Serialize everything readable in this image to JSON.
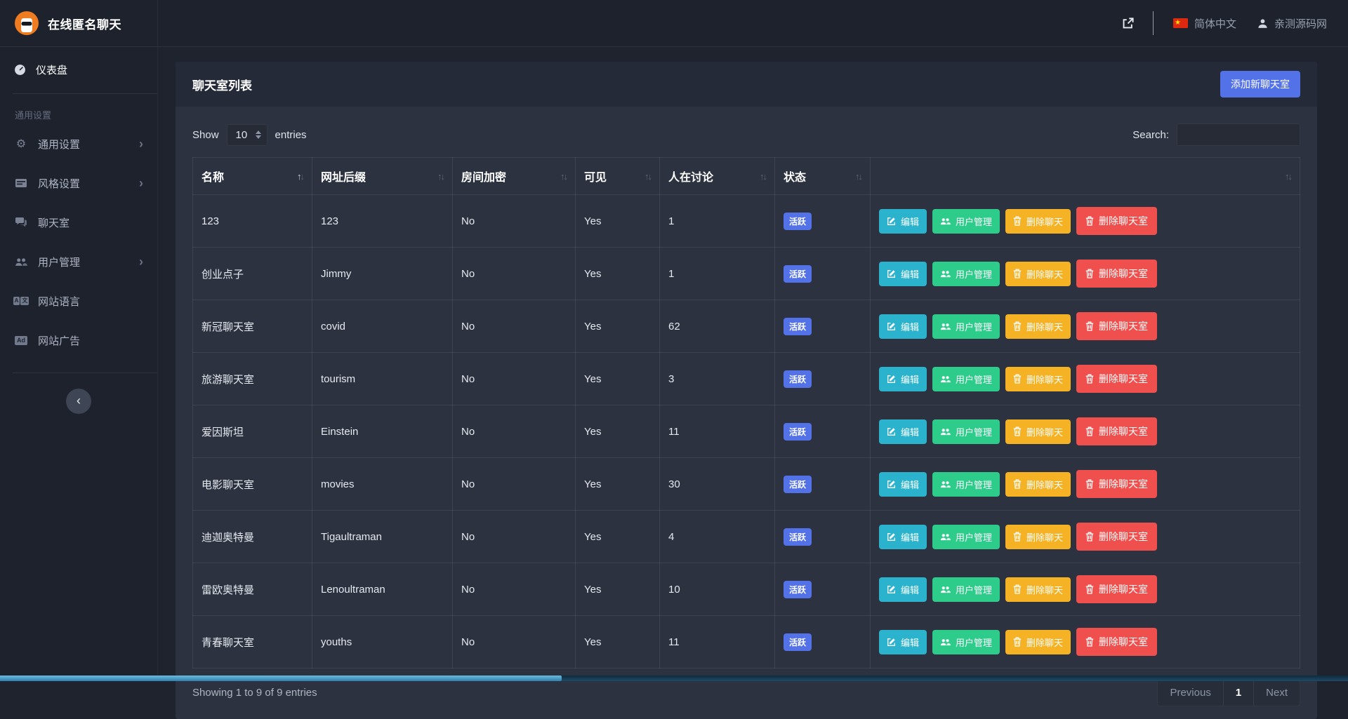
{
  "topbar": {
    "brand": "在线匿名聊天",
    "language": "简体中文",
    "username": "亲测源码网"
  },
  "sidebar": {
    "dashboard": "仪表盘",
    "section_label": "通用设置",
    "items": [
      {
        "label": "通用设置",
        "icon": "gear-icon",
        "expandable": true
      },
      {
        "label": "风格设置",
        "icon": "style-icon",
        "expandable": true
      },
      {
        "label": "聊天室",
        "icon": "comments-icon",
        "expandable": false
      },
      {
        "label": "用户管理",
        "icon": "users-icon",
        "expandable": true
      },
      {
        "label": "网站语言",
        "icon": "language-icon",
        "expandable": false
      },
      {
        "label": "网站广告",
        "icon": "ad-icon",
        "expandable": false
      }
    ]
  },
  "panel": {
    "title": "聊天室列表",
    "add_button": "添加新聊天室",
    "show_label": "Show",
    "page_size": "10",
    "entries_label": "entries",
    "search_label": "Search:",
    "info": "Showing 1 to 9 of 9 entries",
    "pagination": {
      "previous": "Previous",
      "current_page": "1",
      "next": "Next"
    }
  },
  "table": {
    "columns": [
      "名称",
      "网址后缀",
      "房间加密",
      "可见",
      "人在讨论",
      "状态",
      ""
    ],
    "rows": [
      {
        "name": "123",
        "suffix": "123",
        "encrypted": "No",
        "visible": "Yes",
        "discussing": "1",
        "status": "活跃"
      },
      {
        "name": "创业点子",
        "suffix": "Jimmy",
        "encrypted": "No",
        "visible": "Yes",
        "discussing": "1",
        "status": "活跃"
      },
      {
        "name": "新冠聊天室",
        "suffix": "covid",
        "encrypted": "No",
        "visible": "Yes",
        "discussing": "62",
        "status": "活跃"
      },
      {
        "name": "旅游聊天室",
        "suffix": "tourism",
        "encrypted": "No",
        "visible": "Yes",
        "discussing": "3",
        "status": "活跃"
      },
      {
        "name": "爱因斯坦",
        "suffix": "Einstein",
        "encrypted": "No",
        "visible": "Yes",
        "discussing": "11",
        "status": "活跃"
      },
      {
        "name": "电影聊天室",
        "suffix": "movies",
        "encrypted": "No",
        "visible": "Yes",
        "discussing": "30",
        "status": "活跃"
      },
      {
        "name": "迪迦奥特曼",
        "suffix": "Tigaultraman",
        "encrypted": "No",
        "visible": "Yes",
        "discussing": "4",
        "status": "活跃"
      },
      {
        "name": "雷欧奥特曼",
        "suffix": "Lenoultraman",
        "encrypted": "No",
        "visible": "Yes",
        "discussing": "10",
        "status": "活跃"
      },
      {
        "name": "青春聊天室",
        "suffix": "youths",
        "encrypted": "No",
        "visible": "Yes",
        "discussing": "11",
        "status": "活跃"
      }
    ],
    "actions": [
      {
        "key": "edit",
        "label": "编辑",
        "icon": "edit-icon",
        "color": "#2bb3cd"
      },
      {
        "key": "users",
        "label": "用户管理",
        "icon": "users-icon",
        "color": "#2ecc8b"
      },
      {
        "key": "del-chat",
        "label": "删除聊天",
        "icon": "trash-icon",
        "color": "#f5b225"
      },
      {
        "key": "del-room",
        "label": "删除聊天室",
        "icon": "trash-icon",
        "color": "#f0504d"
      }
    ]
  },
  "colors": {
    "accent_blue": "#5472e8",
    "status_badge": "#5472e8",
    "sidebar_bg": "#1e222d",
    "card_bg": "#2c323f",
    "card_header_bg": "#242a37",
    "page_bg": "#1f232d",
    "logo_orange": "#f07c22",
    "flag_red": "#de2910",
    "flag_yellow": "#ffde00",
    "scrollbar_thumb": "#3f9ccc"
  }
}
